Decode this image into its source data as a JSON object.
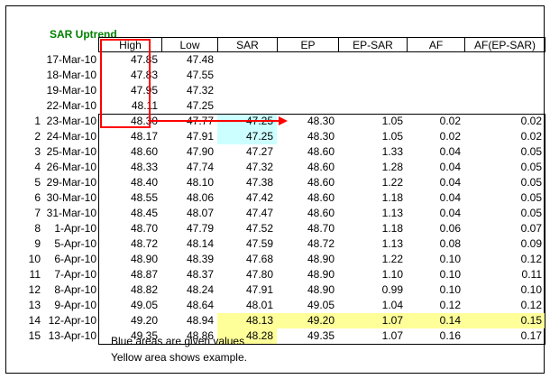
{
  "title": "SAR Uptrend",
  "headers": [
    "High",
    "Low",
    "SAR",
    "EP",
    "EP-SAR",
    "AF",
    "AF(EP-SAR)"
  ],
  "pre_rows": [
    {
      "date": "17-Mar-10",
      "high": "47.85",
      "low": "47.48"
    },
    {
      "date": "18-Mar-10",
      "high": "47.83",
      "low": "47.55"
    },
    {
      "date": "19-Mar-10",
      "high": "47.95",
      "low": "47.32"
    },
    {
      "date": "22-Mar-10",
      "high": "48.11",
      "low": "47.25"
    }
  ],
  "rows": [
    {
      "idx": "1",
      "date": "23-Mar-10",
      "high": "48.30",
      "low": "47.77",
      "sar": "47.25",
      "ep": "48.30",
      "ep_sar": "1.05",
      "af": "0.02",
      "af_ep_sar": "0.02"
    },
    {
      "idx": "2",
      "date": "24-Mar-10",
      "high": "48.17",
      "low": "47.91",
      "sar": "47.25",
      "ep": "48.30",
      "ep_sar": "1.05",
      "af": "0.02",
      "af_ep_sar": "0.02"
    },
    {
      "idx": "3",
      "date": "25-Mar-10",
      "high": "48.60",
      "low": "47.90",
      "sar": "47.27",
      "ep": "48.60",
      "ep_sar": "1.33",
      "af": "0.04",
      "af_ep_sar": "0.05"
    },
    {
      "idx": "4",
      "date": "26-Mar-10",
      "high": "48.33",
      "low": "47.74",
      "sar": "47.32",
      "ep": "48.60",
      "ep_sar": "1.28",
      "af": "0.04",
      "af_ep_sar": "0.05"
    },
    {
      "idx": "5",
      "date": "29-Mar-10",
      "high": "48.40",
      "low": "48.10",
      "sar": "47.38",
      "ep": "48.60",
      "ep_sar": "1.22",
      "af": "0.04",
      "af_ep_sar": "0.05"
    },
    {
      "idx": "6",
      "date": "30-Mar-10",
      "high": "48.55",
      "low": "48.06",
      "sar": "47.42",
      "ep": "48.60",
      "ep_sar": "1.18",
      "af": "0.04",
      "af_ep_sar": "0.05"
    },
    {
      "idx": "7",
      "date": "31-Mar-10",
      "high": "48.45",
      "low": "48.07",
      "sar": "47.47",
      "ep": "48.60",
      "ep_sar": "1.13",
      "af": "0.04",
      "af_ep_sar": "0.05"
    },
    {
      "idx": "8",
      "date": "1-Apr-10",
      "high": "48.70",
      "low": "47.79",
      "sar": "47.52",
      "ep": "48.70",
      "ep_sar": "1.18",
      "af": "0.06",
      "af_ep_sar": "0.07"
    },
    {
      "idx": "9",
      "date": "5-Apr-10",
      "high": "48.72",
      "low": "48.14",
      "sar": "47.59",
      "ep": "48.72",
      "ep_sar": "1.13",
      "af": "0.08",
      "af_ep_sar": "0.09"
    },
    {
      "idx": "10",
      "date": "6-Apr-10",
      "high": "48.90",
      "low": "48.39",
      "sar": "47.68",
      "ep": "48.90",
      "ep_sar": "1.22",
      "af": "0.10",
      "af_ep_sar": "0.12"
    },
    {
      "idx": "11",
      "date": "7-Apr-10",
      "high": "48.87",
      "low": "48.37",
      "sar": "47.80",
      "ep": "48.90",
      "ep_sar": "1.10",
      "af": "0.10",
      "af_ep_sar": "0.11"
    },
    {
      "idx": "12",
      "date": "8-Apr-10",
      "high": "48.82",
      "low": "48.24",
      "sar": "47.91",
      "ep": "48.90",
      "ep_sar": "0.99",
      "af": "0.10",
      "af_ep_sar": "0.10"
    },
    {
      "idx": "13",
      "date": "9-Apr-10",
      "high": "49.05",
      "low": "48.64",
      "sar": "48.01",
      "ep": "49.05",
      "ep_sar": "1.04",
      "af": "0.12",
      "af_ep_sar": "0.12"
    },
    {
      "idx": "14",
      "date": "12-Apr-10",
      "high": "49.20",
      "low": "48.94",
      "sar": "48.13",
      "ep": "49.20",
      "ep_sar": "1.07",
      "af": "0.14",
      "af_ep_sar": "0.15"
    },
    {
      "idx": "15",
      "date": "13-Apr-10",
      "high": "49.35",
      "low": "48.86",
      "sar": "48.28",
      "ep": "49.35",
      "ep_sar": "1.07",
      "af": "0.16",
      "af_ep_sar": "0.17"
    }
  ],
  "notes": {
    "blue": "Blue areas are given values",
    "yellow": "Yellow area shows example."
  },
  "colors": {
    "title": "#008000",
    "blue_highlight": "#ccffff",
    "yellow_highlight": "#ffff99",
    "red_marker": "#ff0000"
  }
}
